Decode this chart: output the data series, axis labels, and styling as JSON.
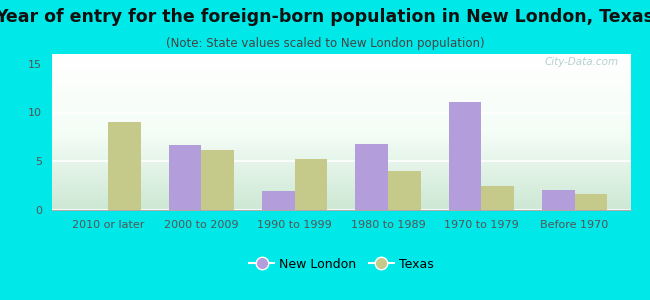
{
  "title": "Year of entry for the foreign-born population in New London, Texas",
  "subtitle": "(Note: State values scaled to New London population)",
  "categories": [
    "2010 or later",
    "2000 to 2009",
    "1990 to 1999",
    "1980 to 1989",
    "1970 to 1979",
    "Before 1970"
  ],
  "new_london": [
    0,
    6.7,
    2.0,
    6.8,
    11.1,
    2.1
  ],
  "texas": [
    9.0,
    6.2,
    5.2,
    4.0,
    2.5,
    1.6
  ],
  "new_london_color": "#b39ddb",
  "texas_color": "#c5c98a",
  "background_outer": "#00e8e8",
  "ylim": [
    0,
    16
  ],
  "yticks": [
    0,
    5,
    10,
    15
  ],
  "bar_width": 0.35,
  "title_fontsize": 12.5,
  "subtitle_fontsize": 8.5,
  "tick_fontsize": 8,
  "legend_fontsize": 9,
  "watermark": "City-Data.com"
}
